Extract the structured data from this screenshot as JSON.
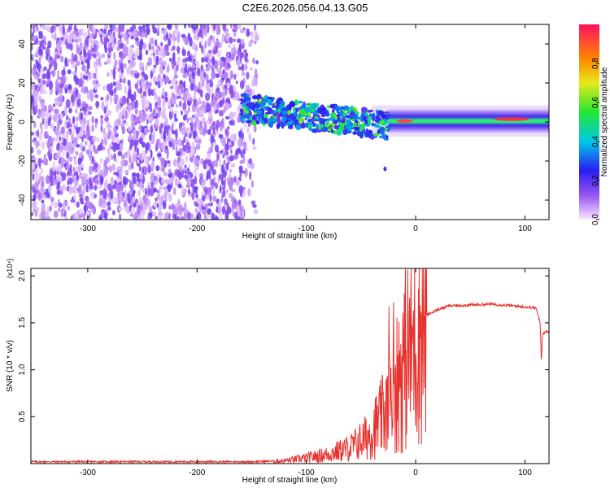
{
  "title": "C2E6.2026.056.04.13.G05",
  "colors": {
    "signal": "#e8322e",
    "axis": "#000000",
    "low_cmap": "#f3e3ff",
    "purple": "#7a2ee6"
  },
  "chart_data": [
    {
      "type": "heatmap",
      "name": "spectrogram",
      "title": "C2E6.2026.056.04.13.G05",
      "xlabel": "Height of straight line (km)",
      "ylabel": "Frequency (Hz)",
      "xlim": [
        -352,
        122
      ],
      "ylim": [
        -50,
        50
      ],
      "xticks": [
        -300,
        -200,
        -100,
        0,
        100
      ],
      "xtick_labels": [
        "-300",
        "-200",
        "-100",
        "0",
        "100"
      ],
      "yticks": [
        -40,
        -20,
        0,
        20,
        40
      ],
      "ytick_labels": [
        "-40",
        "-20",
        "0",
        "20",
        "40"
      ],
      "colorbar": {
        "label": "Normalized spectral amplitude",
        "range": [
          0,
          1
        ],
        "ticks": [
          0,
          0.2,
          0.4,
          0.6,
          0.8
        ],
        "tick_labels": [
          "0.0",
          "0.2",
          "0.4",
          "0.6",
          "0.8"
        ]
      },
      "regions": [
        {
          "description": "broadband noise",
          "x_range": [
            -352,
            -155
          ],
          "freq_range": [
            -50,
            50
          ],
          "amplitude": 0.15
        },
        {
          "description": "signal band",
          "x_range": [
            -160,
            -25
          ],
          "center_start": 7,
          "center_end": -2,
          "half_width": 7,
          "amplitude": 0.35
        },
        {
          "description": "tracked carrier",
          "x_range": [
            -25,
            122
          ],
          "center": 0.5,
          "half_width": 2,
          "amplitude": 0.95
        }
      ]
    },
    {
      "type": "line",
      "name": "snr",
      "xlabel": "Height of straight line (km)",
      "ylabel": "SNR (10 * v/v)",
      "scale_label": "(x10⁴)",
      "xlim": [
        -352,
        122
      ],
      "ylim": [
        0,
        2.08
      ],
      "xticks": [
        -300,
        -200,
        -100,
        0,
        100
      ],
      "xtick_labels": [
        "-300",
        "-200",
        "-100",
        "0",
        "100"
      ],
      "yticks": [
        0.5,
        1.0,
        1.5,
        2.0
      ],
      "ytick_labels": [
        "0.5",
        "1.0",
        "1.5",
        "2.0"
      ],
      "series": [
        {
          "name": "SNR",
          "x": [
            -352,
            -300,
            -250,
            -200,
            -150,
            -120,
            -100,
            -80,
            -60,
            -45,
            -35,
            -25,
            -20,
            -15,
            -10,
            -5,
            0,
            5,
            10,
            20,
            30,
            50,
            70,
            90,
            110,
            114,
            115,
            116,
            118,
            122
          ],
          "y": [
            0.02,
            0.02,
            0.02,
            0.02,
            0.02,
            0.03,
            0.06,
            0.1,
            0.17,
            0.28,
            0.42,
            0.6,
            0.8,
            0.95,
            1.1,
            1.22,
            1.34,
            1.48,
            1.58,
            1.64,
            1.68,
            1.69,
            1.7,
            1.68,
            1.66,
            1.5,
            1.08,
            1.38,
            1.4,
            1.41
          ]
        }
      ]
    }
  ]
}
